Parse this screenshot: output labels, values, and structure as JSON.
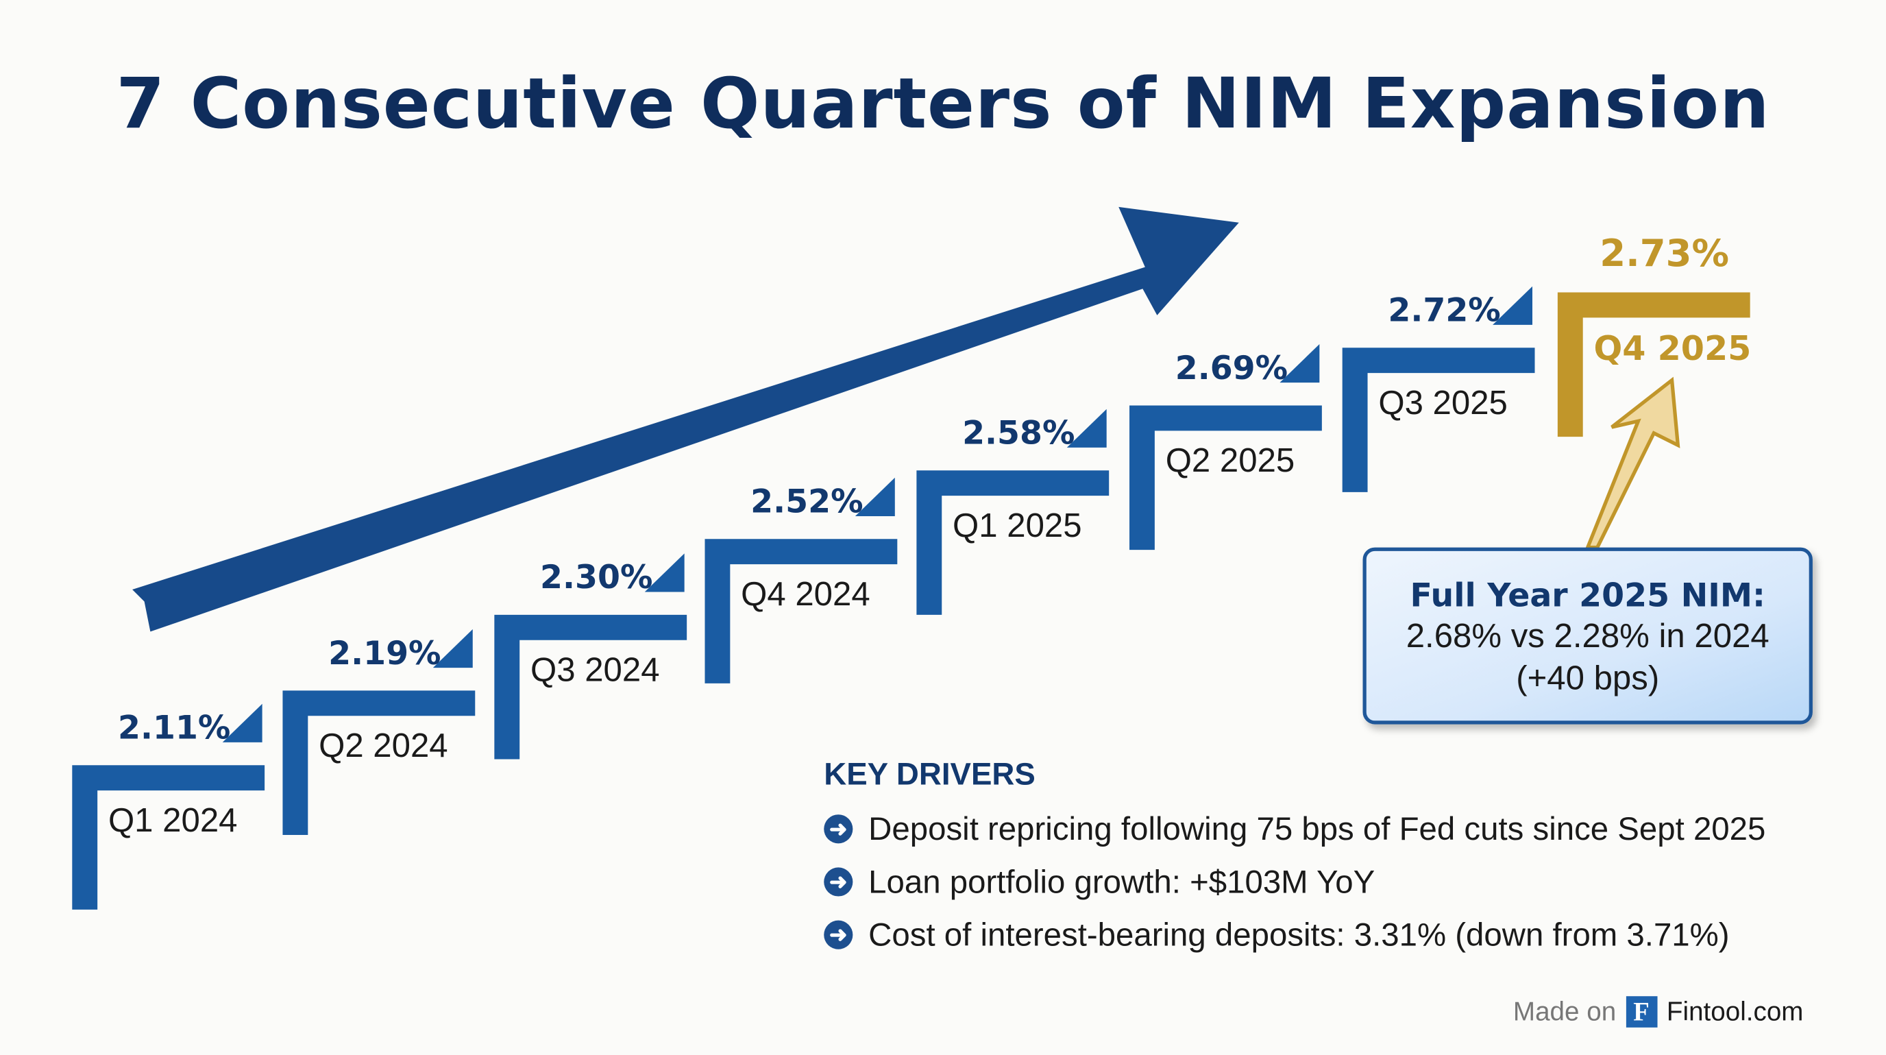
{
  "title": "7 Consecutive Quarters of NIM Expansion",
  "colors": {
    "step_blue": "#1a5ca3",
    "highlight_gold": "#c1962a",
    "title_navy": "#0f2d5c",
    "arrow_navy": "#174a8a"
  },
  "quarters": [
    {
      "label": "Q1 2024",
      "nim": "2.11%"
    },
    {
      "label": "Q2 2024",
      "nim": "2.19%"
    },
    {
      "label": "Q3 2024",
      "nim": "2.30%"
    },
    {
      "label": "Q4 2024",
      "nim": "2.52%"
    },
    {
      "label": "Q1 2025",
      "nim": "2.58%"
    },
    {
      "label": "Q2 2025",
      "nim": "2.69%"
    },
    {
      "label": "Q3 2025",
      "nim": "2.72%"
    },
    {
      "label": "Q4 2025",
      "nim": "2.73%",
      "highlight": true
    }
  ],
  "callout": {
    "heading": "Full Year 2025 NIM:",
    "line1": "2.68% vs 2.28% in 2024",
    "line2": "(+40 bps)"
  },
  "key_drivers": {
    "heading": "KEY DRIVERS",
    "icon": "arrow-right-circle-icon",
    "items": [
      "Deposit repricing following 75 bps of Fed cuts since Sept 2025",
      "Loan portfolio growth: +$103M YoY",
      "Cost of interest-bearing deposits: 3.31% (down from 3.71%)"
    ]
  },
  "footer": {
    "made_on": "Made on",
    "logo_letter": "F",
    "brand": "Fintool.com"
  }
}
